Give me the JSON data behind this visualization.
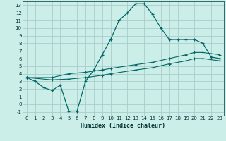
{
  "xlabel": "Humidex (Indice chaleur)",
  "background_color": "#cceee8",
  "grid_color": "#aacccc",
  "line_color": "#006666",
  "xlim": [
    -0.5,
    23.5
  ],
  "ylim": [
    -1.5,
    13.5
  ],
  "xticks": [
    0,
    1,
    2,
    3,
    4,
    5,
    6,
    7,
    8,
    9,
    10,
    11,
    12,
    13,
    14,
    15,
    16,
    17,
    18,
    19,
    20,
    21,
    22,
    23
  ],
  "yticks": [
    -1,
    0,
    1,
    2,
    3,
    4,
    5,
    6,
    7,
    8,
    9,
    10,
    11,
    12,
    13
  ],
  "line1_x": [
    0,
    1,
    2,
    3,
    4,
    5,
    6,
    7,
    8,
    9,
    10,
    11,
    12,
    13,
    14,
    15,
    16,
    17,
    18,
    19,
    20,
    21,
    22,
    23
  ],
  "line1_y": [
    3.5,
    3.0,
    2.2,
    1.8,
    2.5,
    -0.9,
    -0.9,
    3.0,
    4.5,
    6.5,
    8.5,
    11.0,
    12.0,
    13.2,
    13.2,
    11.8,
    10.0,
    8.5,
    8.5,
    8.5,
    8.5,
    8.0,
    6.2,
    6.0
  ],
  "line2_x": [
    0,
    3,
    5,
    7,
    9,
    10,
    13,
    15,
    17,
    19,
    20,
    21,
    23
  ],
  "line2_y": [
    3.5,
    3.5,
    4.0,
    4.2,
    4.5,
    4.7,
    5.2,
    5.5,
    6.0,
    6.5,
    6.8,
    6.8,
    6.5
  ],
  "line3_x": [
    0,
    3,
    5,
    7,
    9,
    10,
    13,
    15,
    17,
    19,
    20,
    21,
    23
  ],
  "line3_y": [
    3.5,
    3.2,
    3.3,
    3.5,
    3.8,
    4.0,
    4.5,
    4.8,
    5.3,
    5.7,
    6.0,
    6.0,
    5.7
  ]
}
